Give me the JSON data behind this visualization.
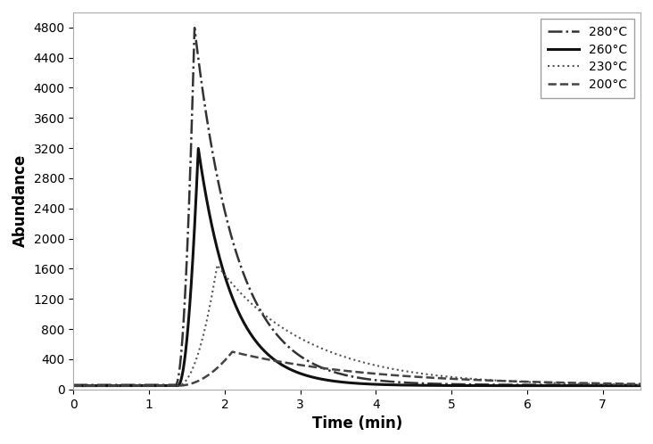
{
  "title": "",
  "xlabel": "Time (min)",
  "ylabel": "Abundance",
  "xlim": [
    0,
    7.5
  ],
  "ylim": [
    0,
    5000
  ],
  "yticks": [
    0,
    400,
    800,
    1200,
    1600,
    2000,
    2400,
    2800,
    3200,
    3600,
    4000,
    4400,
    4800
  ],
  "xticks": [
    0,
    1,
    2,
    3,
    4,
    5,
    6,
    7
  ],
  "background_color": "#ffffff",
  "series": [
    {
      "label": "280°C",
      "linestyle": "-.",
      "linewidth": 1.8,
      "color": "#333333",
      "peak_time": 1.6,
      "peak_value": 4800,
      "rise_start": 1.35,
      "decay_rate": 1.8,
      "baseline": 60,
      "tail_end": 7.5
    },
    {
      "label": "260°C",
      "linestyle": "-",
      "linewidth": 2.2,
      "color": "#111111",
      "peak_time": 1.65,
      "peak_value": 3200,
      "rise_start": 1.38,
      "decay_rate": 2.2,
      "baseline": 50,
      "tail_end": 7.5
    },
    {
      "label": "230°C",
      "linestyle": ":",
      "linewidth": 1.5,
      "color": "#555555",
      "peak_time": 1.9,
      "peak_value": 1650,
      "rise_start": 1.38,
      "decay_rate": 0.85,
      "baseline": 50,
      "tail_end": 7.5
    },
    {
      "label": "200°C",
      "linestyle": "--",
      "linewidth": 1.8,
      "color": "#444444",
      "peak_time": 2.1,
      "peak_value": 500,
      "rise_start": 1.38,
      "decay_rate": 0.55,
      "baseline": 50,
      "tail_end": 7.5
    }
  ]
}
